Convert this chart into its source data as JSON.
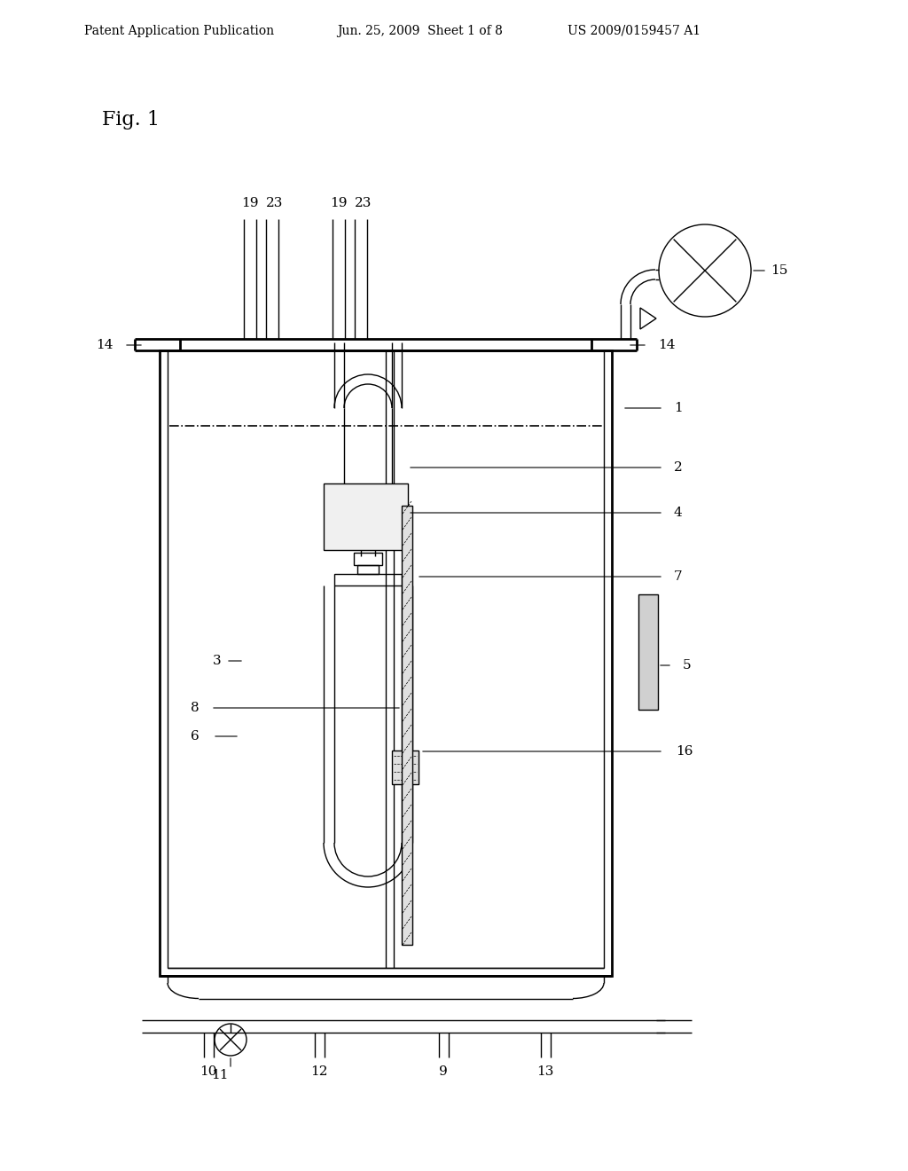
{
  "header_left": "Patent Application Publication",
  "header_mid": "Jun. 25, 2009  Sheet 1 of 8",
  "header_right": "US 2009/0159457 A1",
  "fig_label": "Fig. 1",
  "bg_color": "#ffffff",
  "line_color": "#000000",
  "gray_color": "#cccccc",
  "light_gray": "#e8e8e8"
}
